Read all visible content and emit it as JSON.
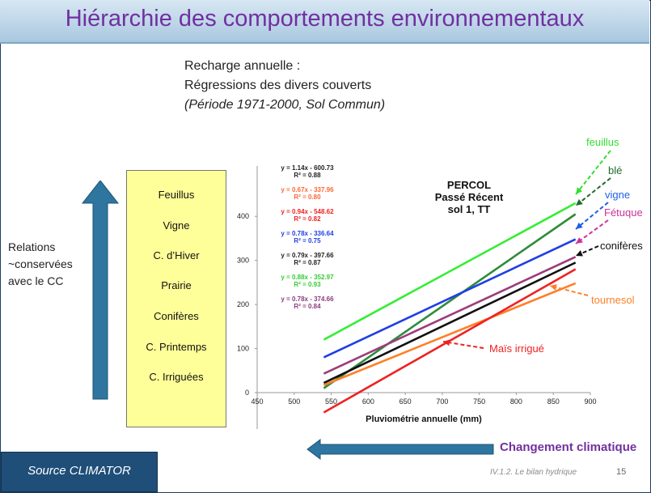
{
  "title": "Hiérarchie des comportements environnementaux",
  "subtitle": {
    "line1": "Recharge annuelle :",
    "line2": "Régressions des divers  couverts",
    "line3": "(Période 1971-2000, Sol Commun)"
  },
  "relations": {
    "line1": "Relations",
    "line2": "~conservées",
    "line3": "avec le CC"
  },
  "ranking": [
    "Feuillus",
    "Vigne",
    "C. d’Hiver",
    "Prairie",
    "Conifères",
    "C. Printemps",
    "C. Irriguées"
  ],
  "colors": {
    "arrow": "#2e75a0",
    "title": "#7030a0",
    "source_bg": "#1f4e79",
    "rank_bg": "#ffff99"
  },
  "bottom": {
    "climate_label": "Changement climatique",
    "source_label": "Source CLIMATOR",
    "footer": "IV.1.2. Le bilan hydrique",
    "page": "15"
  },
  "chart_data": {
    "type": "line",
    "title": "PERCOL\nPassé Récent\nsol 1, TT",
    "xlabel": "Pluviométrie annuelle (mm)",
    "ylabel": "",
    "xlim": [
      450,
      900
    ],
    "ylim": [
      0,
      450
    ],
    "xticks": [
      450,
      500,
      550,
      600,
      650,
      700,
      750,
      800,
      850,
      900
    ],
    "yticks": [
      0,
      100,
      200,
      300,
      400
    ],
    "grid": false,
    "series": [
      {
        "name": "feuillus",
        "color": "#33ee33",
        "x": [
          540,
          880
        ],
        "y": [
          120,
          430
        ]
      },
      {
        "name": "blé",
        "color": "#2e8b3c",
        "x": [
          540,
          880
        ],
        "y": [
          10,
          405
        ]
      },
      {
        "name": "vigne",
        "color": "#1f3fe6",
        "x": [
          540,
          880
        ],
        "y": [
          80,
          348
        ]
      },
      {
        "name": "Fétuque",
        "color": "#9c3c7a",
        "x": [
          540,
          880
        ],
        "y": [
          43,
          308
        ]
      },
      {
        "name": "conifères",
        "color": "#111111",
        "x": [
          540,
          880
        ],
        "y": [
          22,
          295
        ]
      },
      {
        "name": "tournesol",
        "color": "#ff7f27",
        "x": [
          540,
          880
        ],
        "y": [
          17,
          248
        ]
      },
      {
        "name": "Maïs irrigué",
        "color": "#ee2222",
        "x": [
          540,
          880
        ],
        "y": [
          -45,
          280
        ]
      }
    ],
    "equations": [
      {
        "eq": "y = 1.14x - 600.73",
        "r2": "R² = 0.88",
        "color": "#222222"
      },
      {
        "eq": "y = 0.67x - 337.96",
        "r2": "R² = 0.80",
        "color": "#ff6633"
      },
      {
        "eq": "y = 0.94x - 548.62",
        "r2": "R² = 0.82",
        "color": "#ee2222"
      },
      {
        "eq": "y = 0.78x - 336.64",
        "r2": "R² = 0.75",
        "color": "#1f3fe6"
      },
      {
        "eq": "y = 0.79x - 397.66",
        "r2": "R² = 0.87",
        "color": "#222222"
      },
      {
        "eq": "y = 0.88x - 352.97",
        "r2": "R² = 0.93",
        "color": "#33cc33"
      },
      {
        "eq": "y = 0.78x - 374.66",
        "r2": "R² = 0.84",
        "color": "#8c3c7a"
      }
    ],
    "callouts": [
      {
        "text": "feuillus",
        "color": "#33dd33"
      },
      {
        "text": "blé",
        "color": "#1f6b2c"
      },
      {
        "text": "vigne",
        "color": "#1f5fe6"
      },
      {
        "text": "Fétuque",
        "color": "#cc3399"
      },
      {
        "text": "conifères",
        "color": "#111111"
      },
      {
        "text": "tournesol",
        "color": "#ff7f27"
      },
      {
        "text": "Maïs irrigué",
        "color": "#ee2222"
      }
    ]
  }
}
